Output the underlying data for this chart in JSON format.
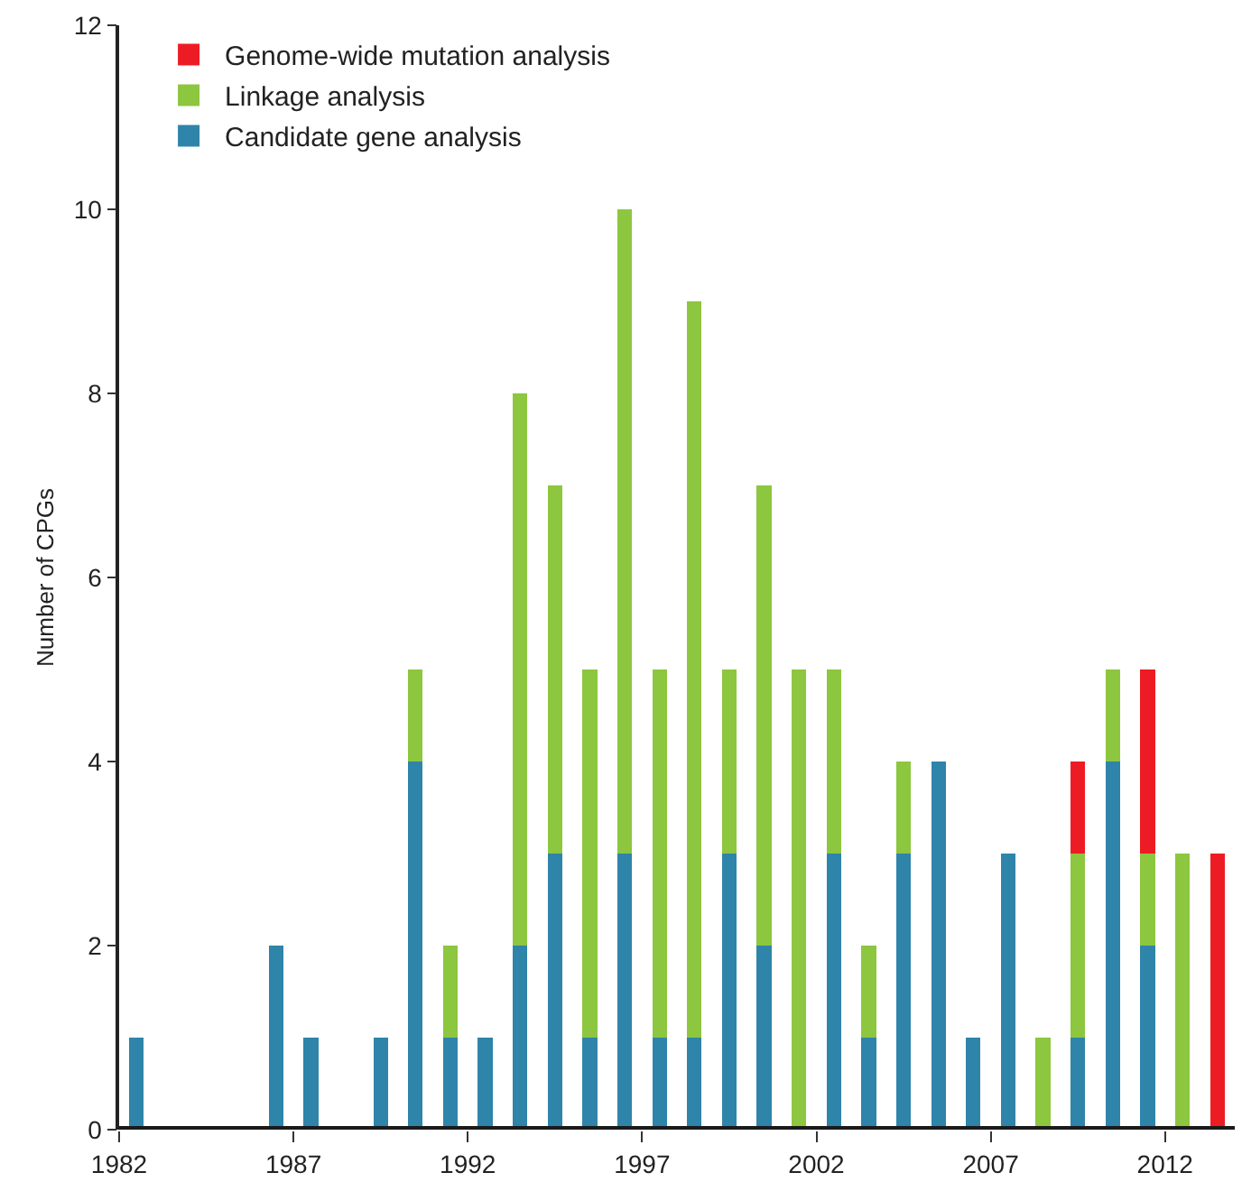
{
  "chart_data": {
    "type": "bar",
    "stacked": true,
    "ylabel": "Number of CPGs",
    "x": [
      1982.5,
      1986.5,
      1987.5,
      1989.5,
      1990.5,
      1991.5,
      1992.5,
      1993.5,
      1994.5,
      1995.5,
      1996.5,
      1997.5,
      1998.5,
      1999.5,
      2000.5,
      2001.5,
      2002.5,
      2003.5,
      2004.5,
      2005.5,
      2006.5,
      2007.5,
      2008.5,
      2009.5,
      2010.5,
      2011.5,
      2012.5,
      2013.5
    ],
    "series": [
      {
        "name": "Candidate gene analysis",
        "color": "#2f84aa",
        "values": [
          1,
          2,
          1,
          1,
          4,
          1,
          1,
          2,
          3,
          1,
          3,
          1,
          1,
          3,
          2,
          0,
          3,
          1,
          3,
          4,
          1,
          3,
          0,
          1,
          4,
          2,
          0,
          0
        ]
      },
      {
        "name": "Linkage analysis",
        "color": "#8dc63f",
        "values": [
          0,
          0,
          0,
          0,
          1,
          1,
          0,
          6,
          4,
          4,
          7,
          4,
          8,
          2,
          5,
          5,
          2,
          1,
          1,
          0,
          0,
          0,
          1,
          2,
          1,
          1,
          3,
          0
        ]
      },
      {
        "name": "Genome-wide mutation analysis",
        "color": "#ed1c24",
        "values": [
          0,
          0,
          0,
          0,
          0,
          0,
          0,
          0,
          0,
          0,
          0,
          0,
          0,
          0,
          0,
          0,
          0,
          0,
          0,
          0,
          0,
          0,
          0,
          1,
          0,
          2,
          0,
          3
        ]
      }
    ],
    "xlim": [
      1982,
      2014
    ],
    "xticks": [
      1982,
      1987,
      1992,
      1997,
      2002,
      2007,
      2012
    ],
    "ylim": [
      0,
      12
    ],
    "yticks": [
      0,
      2,
      4,
      6,
      8,
      10,
      12
    ],
    "legend": "top left"
  }
}
